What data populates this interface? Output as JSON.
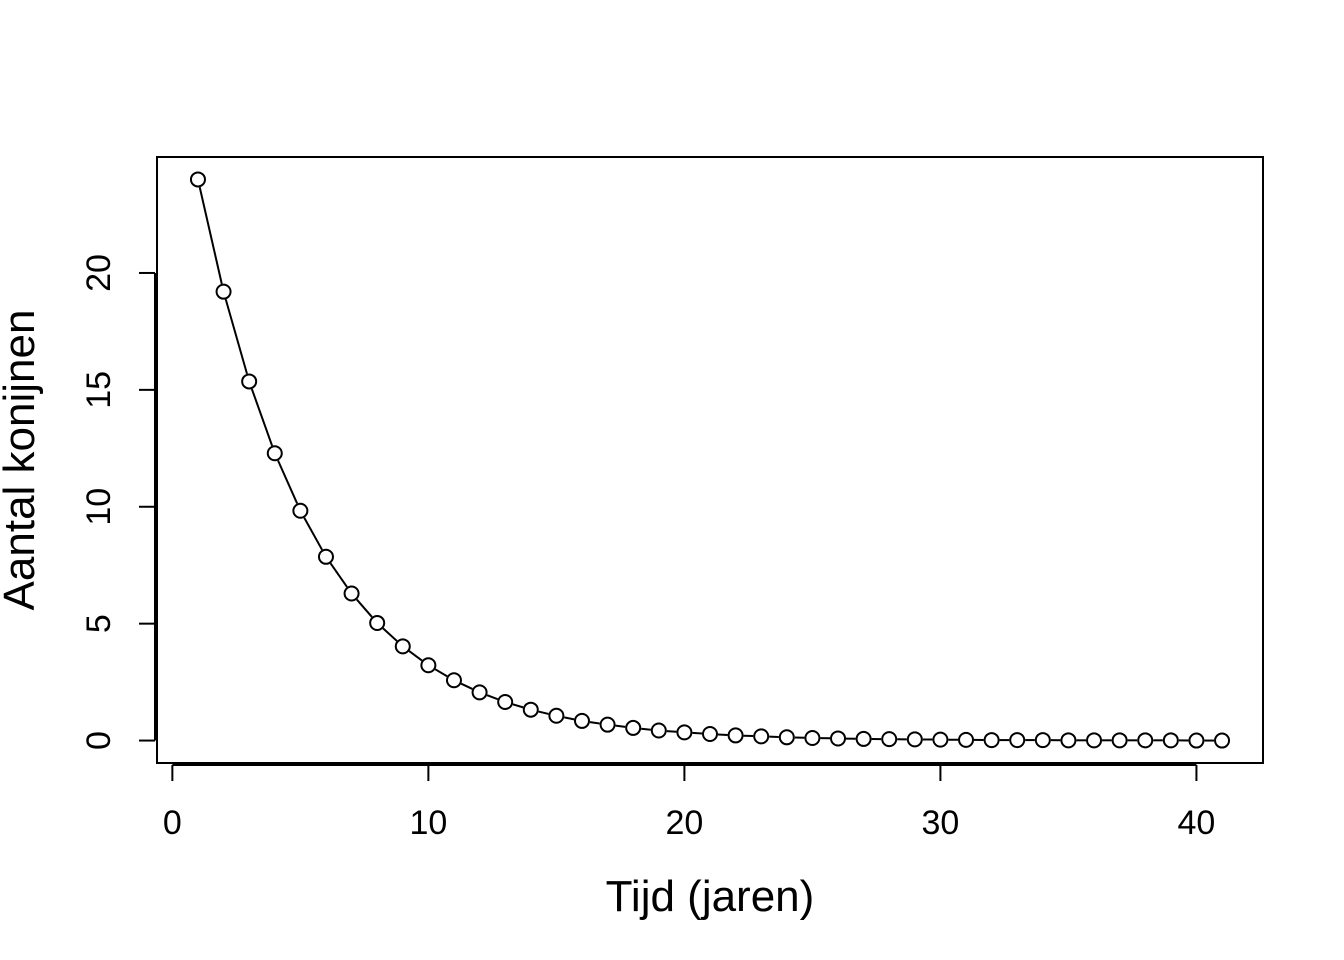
{
  "chart_data": {
    "type": "line",
    "title": "",
    "xlabel": "Tijd (jaren)",
    "ylabel": "Aantal konijnen",
    "xlim": [
      -0.6,
      42.6
    ],
    "ylim": [
      -0.96,
      24.96
    ],
    "xticks": [
      0,
      10,
      20,
      30,
      40
    ],
    "yticks": [
      0,
      5,
      10,
      15,
      20
    ],
    "grid": false,
    "marker": "open-circle",
    "line_color": "#000000",
    "series": [
      {
        "x": [
          1,
          2,
          3,
          4,
          5,
          6,
          7,
          8,
          9,
          10,
          11,
          12,
          13,
          14,
          15,
          16,
          17,
          18,
          19,
          20,
          21,
          22,
          23,
          24,
          25,
          26,
          27,
          28,
          29,
          30,
          31,
          32,
          33,
          34,
          35,
          36,
          37,
          38,
          39,
          40,
          41
        ],
        "values": [
          24.0,
          19.2,
          15.36,
          12.29,
          9.83,
          7.86,
          6.29,
          5.03,
          4.03,
          3.22,
          2.58,
          2.06,
          1.65,
          1.32,
          1.06,
          0.84,
          0.68,
          0.54,
          0.43,
          0.35,
          0.28,
          0.22,
          0.18,
          0.14,
          0.11,
          0.09,
          0.07,
          0.06,
          0.05,
          0.04,
          0.03,
          0.02,
          0.02,
          0.02,
          0.01,
          0.01,
          0.01,
          0.01,
          0.01,
          0.0,
          0.0
        ]
      }
    ]
  }
}
